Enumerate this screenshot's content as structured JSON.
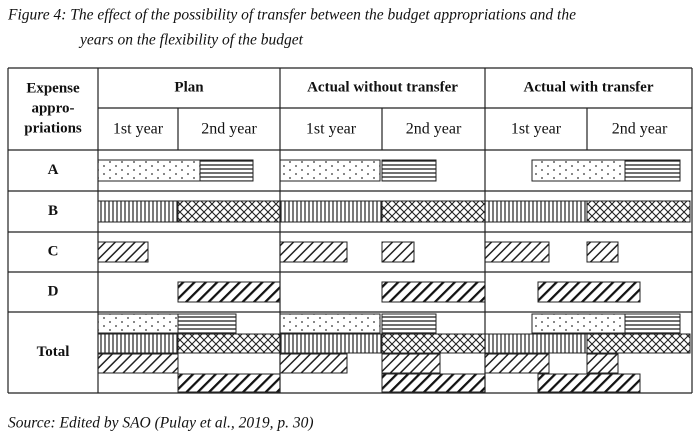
{
  "caption": [
    "Figure 4: The effect of the possibility of transfer between the budget appropriations and the",
    "years on the flexibility of the budget"
  ],
  "table": {
    "corner": [
      "Expense",
      "appro-",
      "priations"
    ],
    "groups": [
      "Plan",
      "Actual without transfer",
      "Actual with transfer"
    ],
    "years": [
      "1st year",
      "2nd year",
      "1st year",
      "2nd year",
      "1st year",
      "2nd year"
    ],
    "rows": [
      "A",
      "B",
      "C",
      "D",
      "Total"
    ]
  },
  "source": "Source: Edited by SAO (Pulay et al., 2019, p. 30)"
}
